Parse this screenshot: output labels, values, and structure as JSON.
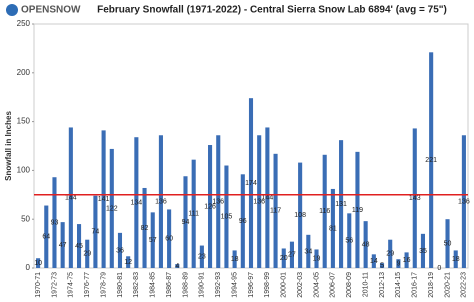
{
  "chart_data": {
    "type": "bar",
    "title": "February Snowfall (1971-2022) - Central Sierra Snow Lab 6894' (avg = 75\")",
    "brand": "OPENSNOW",
    "y_label": "Snowfall in Inches",
    "categories": [
      "1970-71",
      null,
      "1972-73",
      null,
      "1974-75",
      null,
      "1976-77",
      null,
      "1978-79",
      null,
      "1980-81",
      null,
      "1982-83",
      null,
      "1984-85",
      null,
      "1986-87",
      null,
      "1988-89",
      null,
      "1990-91",
      null,
      "1992-93",
      null,
      "1994-95",
      null,
      "1996-97",
      null,
      "1998-99",
      null,
      "2000-01",
      null,
      "2002-03",
      null,
      "2004-05",
      null,
      "2006-07",
      null,
      "2008-09",
      null,
      "2010-11",
      null,
      "2012-13",
      null,
      "2014-15",
      null,
      "2016-17",
      null,
      "2018-19",
      null,
      "2020-21",
      null,
      "2022-23"
    ],
    "values": [
      10,
      64,
      93,
      47,
      144,
      45,
      29,
      74,
      141,
      122,
      36,
      12,
      134,
      82,
      57,
      136,
      60,
      4,
      94,
      111,
      23,
      126,
      136,
      105,
      18,
      96,
      174,
      136,
      144,
      117,
      20,
      27,
      108,
      34,
      19,
      116,
      81,
      131,
      56,
      119,
      48,
      14,
      5,
      29,
      9,
      16,
      143,
      35,
      221,
      0,
      50,
      18,
      136
    ],
    "color": "#3a6db5",
    "ylim": [
      0,
      250
    ],
    "yticks": [
      0,
      50,
      100,
      150,
      200,
      250
    ],
    "reference_line": {
      "value": 75,
      "color": "#e02020"
    }
  }
}
